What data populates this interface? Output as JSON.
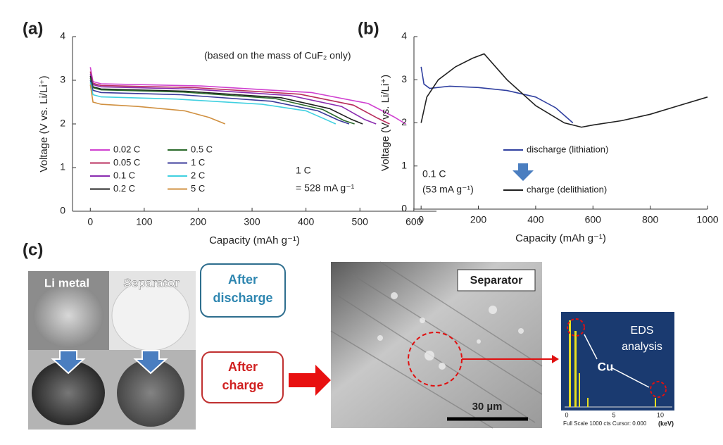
{
  "chart_data": [
    {
      "type": "line",
      "panel_label": "(a)",
      "x_label": "Capacity (mAh g⁻¹)",
      "y_label": "Voltage (V vs. Li/Li⁺)",
      "xlim": [
        -33,
        642
      ],
      "ylim": [
        0,
        4
      ],
      "xticks": [
        0,
        100,
        200,
        300,
        400,
        500,
        600
      ],
      "yticks": [
        0,
        1,
        2,
        3,
        4
      ],
      "legend": "lower left",
      "annotations": [
        "(based on the mass of CuF₂ only)",
        "1 C",
        "= 528 mA g⁻¹"
      ],
      "series": [
        {
          "name": "0.02 C",
          "color": "#d040d0",
          "x": [
            0,
            5,
            20,
            205,
            410,
            515,
            562,
            585
          ],
          "values": [
            3.3,
            2.97,
            2.92,
            2.87,
            2.72,
            2.47,
            2.17,
            2.0
          ]
        },
        {
          "name": "0.05 C",
          "color": "#b82c5c",
          "x": [
            0,
            5,
            20,
            194,
            389,
            488,
            533,
            555
          ],
          "values": [
            3.2,
            2.93,
            2.88,
            2.83,
            2.68,
            2.43,
            2.13,
            2.0
          ]
        },
        {
          "name": "0.1 C",
          "color": "#8a2cb0",
          "x": [
            0,
            5,
            20,
            186,
            371,
            466,
            509,
            530
          ],
          "values": [
            3.15,
            2.9,
            2.85,
            2.8,
            2.65,
            2.4,
            2.1,
            2.0
          ]
        },
        {
          "name": "0.2 C",
          "color": "#202020",
          "x": [
            0,
            5,
            20,
            177,
            354,
            444,
            485,
            505
          ],
          "values": [
            3.1,
            2.85,
            2.8,
            2.75,
            2.6,
            2.35,
            2.1,
            2.0
          ]
        },
        {
          "name": "0.5 C",
          "color": "#2a6a2a",
          "x": [
            0,
            5,
            20,
            172,
            343,
            431,
            470,
            490
          ],
          "values": [
            3.05,
            2.83,
            2.78,
            2.73,
            2.58,
            2.33,
            2.08,
            2.0
          ]
        },
        {
          "name": "1 C",
          "color": "#3a3a9a",
          "x": [
            0,
            5,
            20,
            168,
            336,
            422,
            461,
            480
          ],
          "values": [
            3.0,
            2.77,
            2.72,
            2.67,
            2.52,
            2.3,
            2.08,
            2.0
          ]
        },
        {
          "name": "2 C",
          "color": "#40d0e0",
          "x": [
            0,
            5,
            20,
            159,
            319,
            400,
            437,
            455
          ],
          "values": [
            2.95,
            2.67,
            2.62,
            2.57,
            2.45,
            2.3,
            2.1,
            2.0
          ]
        },
        {
          "name": "5 C",
          "color": "#d09040",
          "x": [
            0,
            5,
            20,
            88,
            175,
            220,
            240,
            250
          ],
          "values": [
            2.9,
            2.5,
            2.45,
            2.4,
            2.3,
            2.15,
            2.05,
            2.0
          ]
        }
      ]
    },
    {
      "type": "line",
      "panel_label": "(b)",
      "x_label": "Capacity (mAh g⁻¹)",
      "y_label": "Voltage (V vs. Li/Li⁺)",
      "xlim": [
        -25,
        1000
      ],
      "ylim": [
        0,
        4
      ],
      "xticks": [
        0,
        200,
        400,
        600,
        800,
        1000
      ],
      "yticks": [
        0,
        1,
        2,
        3,
        4
      ],
      "legend": "lower right",
      "annotations": [
        "0.1 C",
        "(53 mA g⁻¹)"
      ],
      "series": [
        {
          "name": "discharge (lithiation)",
          "color": "#3040a0",
          "x": [
            0,
            10,
            30,
            100,
            200,
            300,
            400,
            470,
            530
          ],
          "values": [
            3.3,
            2.9,
            2.8,
            2.85,
            2.82,
            2.75,
            2.6,
            2.35,
            2.0
          ]
        },
        {
          "name": "charge (delithiation)",
          "color": "#202020",
          "x": [
            0,
            20,
            60,
            120,
            180,
            220,
            300,
            400,
            500,
            560,
            600,
            700,
            800,
            900,
            1000
          ],
          "values": [
            2.0,
            2.6,
            3.0,
            3.3,
            3.5,
            3.6,
            3.0,
            2.4,
            2.0,
            1.9,
            1.95,
            2.05,
            2.2,
            2.4,
            2.6
          ]
        }
      ]
    }
  ],
  "panel_c": {
    "label": "(c)",
    "photo_labels": [
      "Li metal",
      "Separator"
    ],
    "after_discharge": [
      "After",
      "discharge"
    ],
    "after_charge": [
      "After",
      "charge"
    ],
    "sem": {
      "label": "Separator",
      "scale_bar": "30 µm"
    },
    "eds": {
      "title": [
        "EDS",
        "analysis"
      ],
      "element": "Cu",
      "footer": "Full Scale 1000 cts Cursor: 0.000",
      "unit": "(keV)",
      "ticks": [
        "0",
        "5",
        "10"
      ]
    }
  }
}
